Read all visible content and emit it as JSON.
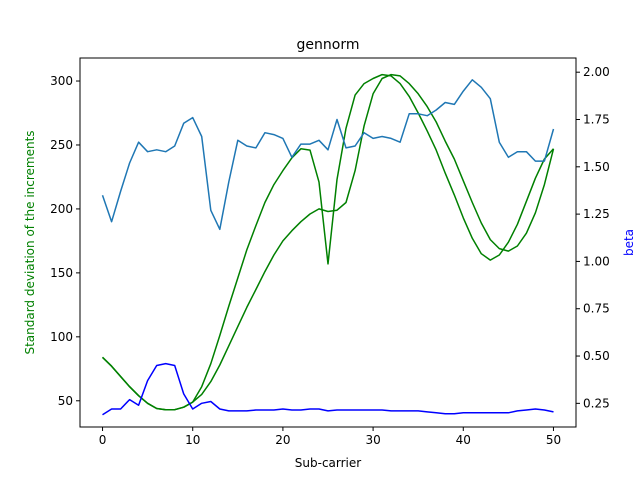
{
  "chart_data": {
    "type": "line",
    "title": "gennorm",
    "xlabel": "Sub-carrier",
    "ylabel_left": "Standard deviation of the increments",
    "ylabel_right": "beta",
    "xlim": [
      -2.5,
      52.5
    ],
    "ylim_left": [
      29.5,
      318
    ],
    "ylim_right": [
      0.125,
      2.075
    ],
    "x_ticks": [
      0,
      10,
      20,
      30,
      40,
      50
    ],
    "y_left_ticks": [
      50,
      100,
      150,
      200,
      250,
      300
    ],
    "y_right_ticks": [
      0.25,
      0.5,
      0.75,
      1.0,
      1.25,
      1.5,
      1.75,
      2.0
    ],
    "y_right_tick_labels": [
      "0.25",
      "0.50",
      "0.75",
      "1.00",
      "1.25",
      "1.50",
      "1.75",
      "2.00"
    ],
    "grid": false,
    "legend": "none",
    "colors": {
      "left_axis": "#008000",
      "right_axis": "#0000ff",
      "series3": "#1f77b4"
    },
    "x": [
      0,
      1,
      2,
      3,
      4,
      5,
      6,
      7,
      8,
      9,
      10,
      11,
      12,
      13,
      14,
      15,
      16,
      17,
      18,
      19,
      20,
      21,
      22,
      23,
      24,
      25,
      26,
      27,
      28,
      29,
      30,
      31,
      32,
      33,
      34,
      35,
      36,
      37,
      38,
      39,
      40,
      41,
      42,
      43,
      44,
      45,
      46,
      47,
      48,
      49,
      50
    ],
    "series": [
      {
        "axis": "left",
        "color": "#008000",
        "values": [
          84,
          77,
          69,
          61,
          54,
          48,
          44,
          43,
          43,
          45,
          49,
          55,
          65,
          78,
          93,
          108,
          123,
          137,
          151,
          164,
          175,
          183,
          190,
          196,
          200,
          198,
          199,
          205,
          230,
          265,
          290,
          302,
          305,
          304,
          298,
          290,
          280,
          268,
          253,
          239,
          222,
          205,
          189,
          176,
          169,
          167,
          171,
          181,
          197,
          219,
          247
        ]
      },
      {
        "axis": "left",
        "color": "#008000",
        "values": [
          84,
          77,
          69,
          61,
          54,
          48,
          44,
          43,
          43,
          45,
          49,
          61,
          79,
          101,
          124,
          146,
          168,
          187,
          205,
          219,
          230,
          240,
          247,
          246,
          221,
          157,
          223,
          263,
          289,
          298,
          302,
          305,
          304,
          298,
          288,
          275,
          261,
          246,
          228,
          211,
          193,
          177,
          165,
          160,
          164,
          174,
          188,
          206,
          224,
          239,
          247
        ]
      },
      {
        "axis": "right",
        "color": "#0000ff",
        "values": [
          0.19,
          0.22,
          0.22,
          0.27,
          0.24,
          0.37,
          0.45,
          0.46,
          0.45,
          0.3,
          0.22,
          0.25,
          0.26,
          0.22,
          0.21,
          0.21,
          0.21,
          0.215,
          0.215,
          0.215,
          0.22,
          0.215,
          0.215,
          0.22,
          0.22,
          0.21,
          0.215,
          0.215,
          0.215,
          0.215,
          0.215,
          0.215,
          0.21,
          0.21,
          0.21,
          0.21,
          0.205,
          0.2,
          0.195,
          0.195,
          0.2,
          0.2,
          0.2,
          0.2,
          0.2,
          0.2,
          0.21,
          0.215,
          0.22,
          0.215,
          0.205
        ]
      },
      {
        "axis": "right",
        "color": "#1f77b4",
        "values": [
          1.35,
          1.21,
          1.37,
          1.52,
          1.63,
          1.58,
          1.59,
          1.58,
          1.61,
          1.73,
          1.76,
          1.66,
          1.27,
          1.17,
          1.42,
          1.64,
          1.61,
          1.6,
          1.68,
          1.67,
          1.65,
          1.55,
          1.62,
          1.62,
          1.64,
          1.59,
          1.75,
          1.6,
          1.61,
          1.68,
          1.65,
          1.66,
          1.65,
          1.63,
          1.78,
          1.78,
          1.77,
          1.8,
          1.84,
          1.83,
          1.9,
          1.96,
          1.92,
          1.86,
          1.63,
          1.55,
          1.58,
          1.58,
          1.53,
          1.53,
          1.7
        ]
      }
    ]
  }
}
